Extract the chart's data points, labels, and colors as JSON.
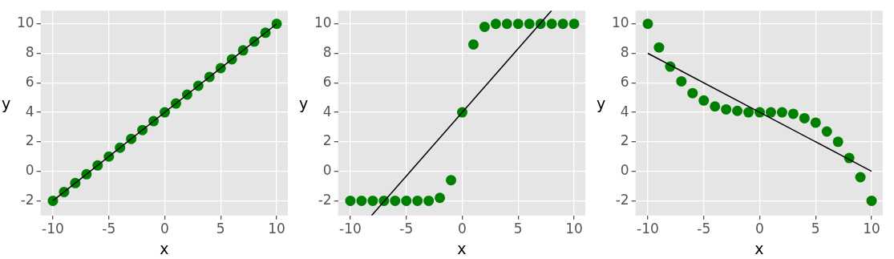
{
  "chart_data": [
    {
      "type": "scatter",
      "xlabel": "x",
      "ylabel": "y",
      "x": [
        -10,
        -9,
        -8,
        -7,
        -6,
        -5,
        -4,
        -3,
        -2,
        -1,
        0,
        1,
        2,
        3,
        4,
        5,
        6,
        7,
        8,
        9,
        10
      ],
      "xlim": [
        -11.1,
        11
      ],
      "xticks": [
        -10,
        -5,
        0,
        5,
        10
      ],
      "ylim": [
        -3,
        10.9
      ],
      "yticks": [
        -2,
        0,
        2,
        4,
        6,
        8,
        10
      ],
      "grid": true,
      "legend": false,
      "series": [
        {
          "marker": "circle",
          "color": "#008000",
          "values": [
            -2,
            -1.4,
            -0.8,
            -0.2,
            0.4,
            1,
            1.6,
            2.2,
            2.8,
            3.4,
            4,
            4.6,
            5.2,
            5.8,
            6.4,
            7,
            7.6,
            8.2,
            8.8,
            9.4,
            10
          ]
        },
        {
          "type": "line",
          "marker": "none",
          "color": "#000000",
          "x": [
            -10,
            10
          ],
          "values": [
            -2,
            10
          ]
        }
      ]
    },
    {
      "type": "scatter",
      "xlabel": "x",
      "ylabel": "y",
      "x": [
        -10,
        -9,
        -8,
        -7,
        -6,
        -5,
        -4,
        -3,
        -2,
        -1,
        0,
        1,
        2,
        3,
        4,
        5,
        6,
        7,
        8,
        9,
        10
      ],
      "xlim": [
        -11.1,
        11
      ],
      "xticks": [
        -10,
        -5,
        0,
        5,
        10
      ],
      "ylim": [
        -3,
        10.9
      ],
      "yticks": [
        -2,
        0,
        2,
        4,
        6,
        8,
        10
      ],
      "grid": true,
      "legend": false,
      "series": [
        {
          "marker": "circle",
          "color": "#008000",
          "values": [
            -2,
            -2,
            -2,
            -2,
            -2,
            -2,
            -2,
            -2,
            -1.8,
            -0.6,
            4,
            8.6,
            9.8,
            10,
            10,
            10,
            10,
            10,
            10,
            10,
            10
          ]
        },
        {
          "type": "line",
          "marker": "none",
          "color": "#000000",
          "x": [
            -8.1,
            7.98
          ],
          "values": [
            -3,
            10.9
          ]
        }
      ]
    },
    {
      "type": "scatter",
      "xlabel": "x",
      "ylabel": "y",
      "x": [
        -10,
        -9,
        -8,
        -7,
        -6,
        -5,
        -4,
        -3,
        -2,
        -1,
        0,
        1,
        2,
        3,
        4,
        5,
        6,
        7,
        8,
        9,
        10
      ],
      "xlim": [
        -11.1,
        11
      ],
      "xticks": [
        -10,
        -5,
        0,
        5,
        10
      ],
      "ylim": [
        -3,
        10.9
      ],
      "yticks": [
        -2,
        0,
        2,
        4,
        6,
        8,
        10
      ],
      "grid": true,
      "legend": false,
      "series": [
        {
          "marker": "circle",
          "color": "#008000",
          "values": [
            10,
            8.4,
            7.1,
            6.1,
            5.3,
            4.8,
            4.4,
            4.2,
            4.1,
            4,
            4,
            4,
            4,
            3.9,
            3.6,
            3.3,
            2.7,
            2,
            0.9,
            -0.4,
            -2
          ]
        },
        {
          "type": "line",
          "marker": "none",
          "color": "#000000",
          "x": [
            -10,
            10
          ],
          "values": [
            8,
            0
          ]
        }
      ]
    }
  ]
}
